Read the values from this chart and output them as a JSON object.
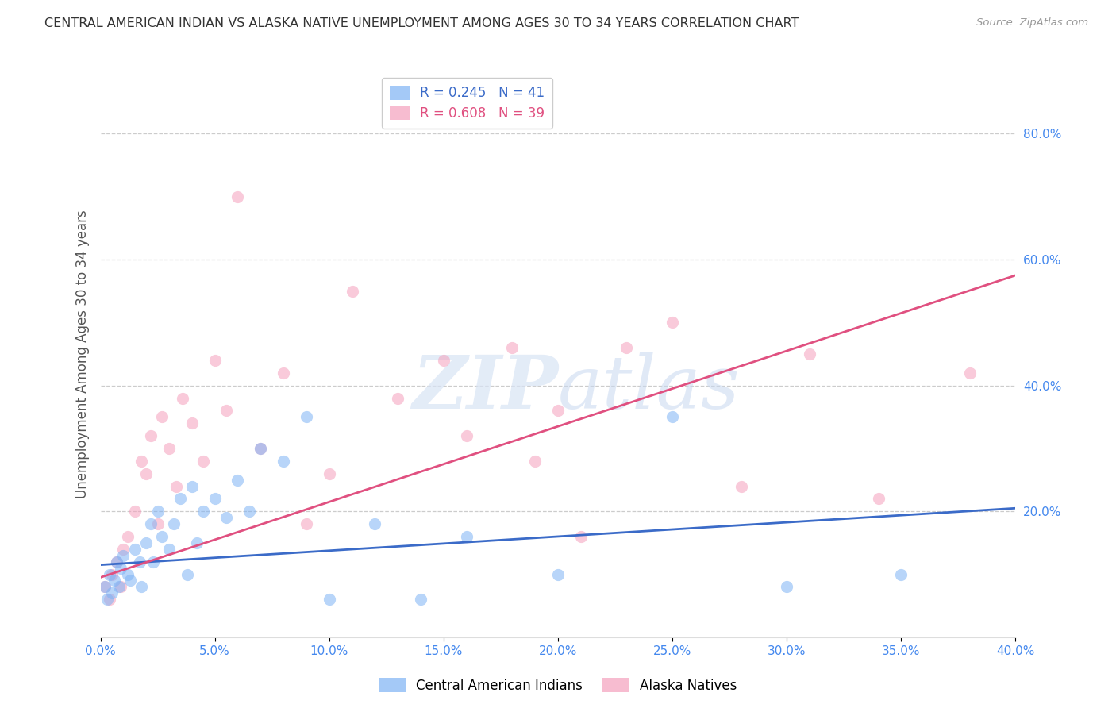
{
  "title": "CENTRAL AMERICAN INDIAN VS ALASKA NATIVE UNEMPLOYMENT AMONG AGES 30 TO 34 YEARS CORRELATION CHART",
  "source": "Source: ZipAtlas.com",
  "ylabel": "Unemployment Among Ages 30 to 34 years",
  "xlim": [
    0.0,
    0.4
  ],
  "ylim": [
    0.0,
    0.9
  ],
  "xticks": [
    0.0,
    0.05,
    0.1,
    0.15,
    0.2,
    0.25,
    0.3,
    0.35,
    0.4
  ],
  "yticks_right": [
    0.2,
    0.4,
    0.6,
    0.8
  ],
  "blue_R": 0.245,
  "blue_N": 41,
  "pink_R": 0.608,
  "pink_N": 39,
  "blue_color": "#7EB3F5",
  "pink_color": "#F5A0BC",
  "blue_line_color": "#3B6BC8",
  "pink_line_color": "#E05080",
  "scatter_alpha": 0.55,
  "scatter_size": 120,
  "watermark_zip": "ZIP",
  "watermark_atlas": "atlas",
  "watermark_color_zip": "#D8E4F5",
  "watermark_color_atlas": "#C8D8F0",
  "legend_label_blue": "Central American Indians",
  "legend_label_pink": "Alaska Natives",
  "blue_x": [
    0.002,
    0.003,
    0.004,
    0.005,
    0.006,
    0.007,
    0.008,
    0.009,
    0.01,
    0.012,
    0.013,
    0.015,
    0.017,
    0.018,
    0.02,
    0.022,
    0.023,
    0.025,
    0.027,
    0.03,
    0.032,
    0.035,
    0.038,
    0.04,
    0.042,
    0.045,
    0.05,
    0.055,
    0.06,
    0.065,
    0.07,
    0.08,
    0.09,
    0.1,
    0.12,
    0.14,
    0.16,
    0.2,
    0.25,
    0.3,
    0.35
  ],
  "blue_y": [
    0.08,
    0.06,
    0.1,
    0.07,
    0.09,
    0.12,
    0.08,
    0.11,
    0.13,
    0.1,
    0.09,
    0.14,
    0.12,
    0.08,
    0.15,
    0.18,
    0.12,
    0.2,
    0.16,
    0.14,
    0.18,
    0.22,
    0.1,
    0.24,
    0.15,
    0.2,
    0.22,
    0.19,
    0.25,
    0.2,
    0.3,
    0.28,
    0.35,
    0.06,
    0.18,
    0.06,
    0.16,
    0.1,
    0.35,
    0.08,
    0.1
  ],
  "pink_x": [
    0.002,
    0.004,
    0.005,
    0.007,
    0.009,
    0.01,
    0.012,
    0.015,
    0.018,
    0.02,
    0.022,
    0.025,
    0.027,
    0.03,
    0.033,
    0.036,
    0.04,
    0.045,
    0.05,
    0.055,
    0.06,
    0.07,
    0.08,
    0.09,
    0.1,
    0.11,
    0.13,
    0.15,
    0.16,
    0.18,
    0.19,
    0.2,
    0.21,
    0.23,
    0.25,
    0.28,
    0.31,
    0.34,
    0.38
  ],
  "pink_y": [
    0.08,
    0.06,
    0.1,
    0.12,
    0.08,
    0.14,
    0.16,
    0.2,
    0.28,
    0.26,
    0.32,
    0.18,
    0.35,
    0.3,
    0.24,
    0.38,
    0.34,
    0.28,
    0.44,
    0.36,
    0.7,
    0.3,
    0.42,
    0.18,
    0.26,
    0.55,
    0.38,
    0.44,
    0.32,
    0.46,
    0.28,
    0.36,
    0.16,
    0.46,
    0.5,
    0.24,
    0.45,
    0.22,
    0.42
  ],
  "blue_line_x0": 0.0,
  "blue_line_y0": 0.115,
  "blue_line_x1": 0.4,
  "blue_line_y1": 0.205,
  "pink_line_x0": 0.0,
  "pink_line_y0": 0.095,
  "pink_line_x1": 0.4,
  "pink_line_y1": 0.575,
  "background_color": "#FFFFFF",
  "grid_color": "#CCCCCC",
  "tick_label_color": "#4488EE",
  "title_color": "#333333",
  "source_color": "#999999",
  "ylabel_color": "#555555"
}
